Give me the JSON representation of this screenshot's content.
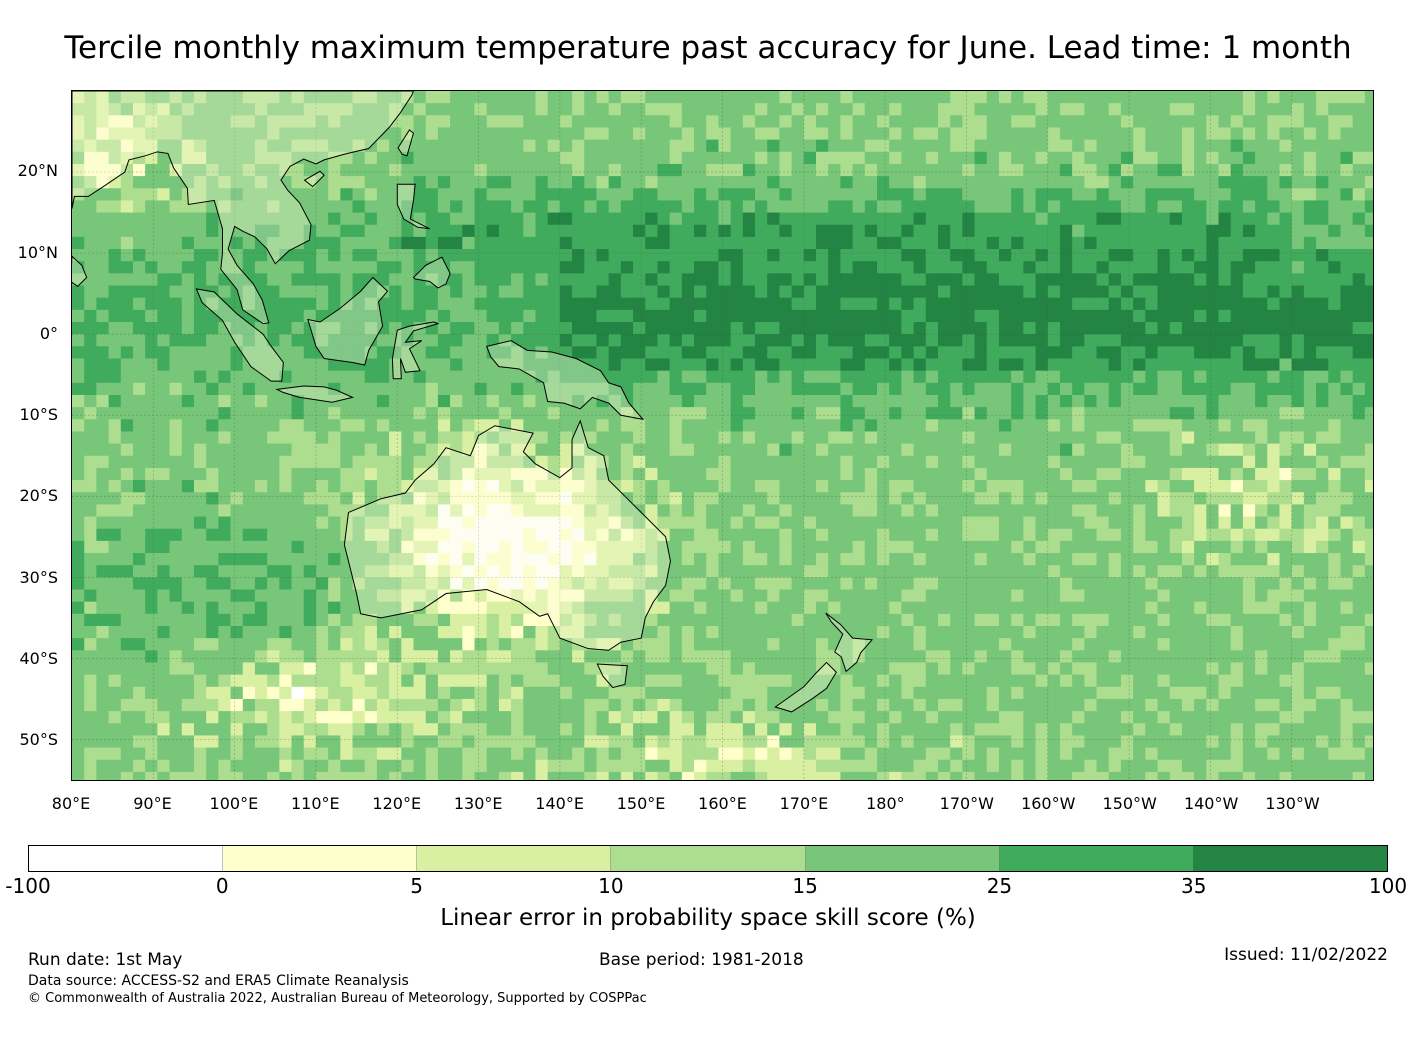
{
  "title": "Tercile monthly maximum temperature past accuracy for June. Lead time: 1 month",
  "map": {
    "lat_labels": [
      "20°N",
      "10°N",
      "0°",
      "10°S",
      "20°S",
      "30°S",
      "40°S",
      "50°S"
    ],
    "lon_labels": [
      "80°E",
      "90°E",
      "100°E",
      "110°E",
      "120°E",
      "130°E",
      "140°E",
      "150°E",
      "160°E",
      "170°E",
      "180°",
      "170°W",
      "160°W",
      "150°W",
      "140°W",
      "130°W"
    ],
    "lon_range": [
      80,
      240
    ],
    "lat_range": [
      -55,
      30
    ],
    "coastline_color": "#000000"
  },
  "colorbar": {
    "ticks": [
      "-100",
      "0",
      "5",
      "10",
      "15",
      "25",
      "35",
      "100"
    ],
    "colors": [
      "#ffffff",
      "#ffffcc",
      "#d9f0a3",
      "#addd8e",
      "#78c679",
      "#41ab5d",
      "#238443"
    ],
    "label": "Linear error in probability space skill score (%)"
  },
  "footer": {
    "run_date": "Run date: 1st May",
    "base_period": "Base period: 1981-2018",
    "issued": "Issued: 11/02/2022",
    "data_source": "Data source: ACCESS-S2 and ERA5 Climate Reanalysis",
    "copyright": "© Commonwealth of Australia 2022, Australian Bureau of Meteorology, Supported by COSPPac"
  }
}
